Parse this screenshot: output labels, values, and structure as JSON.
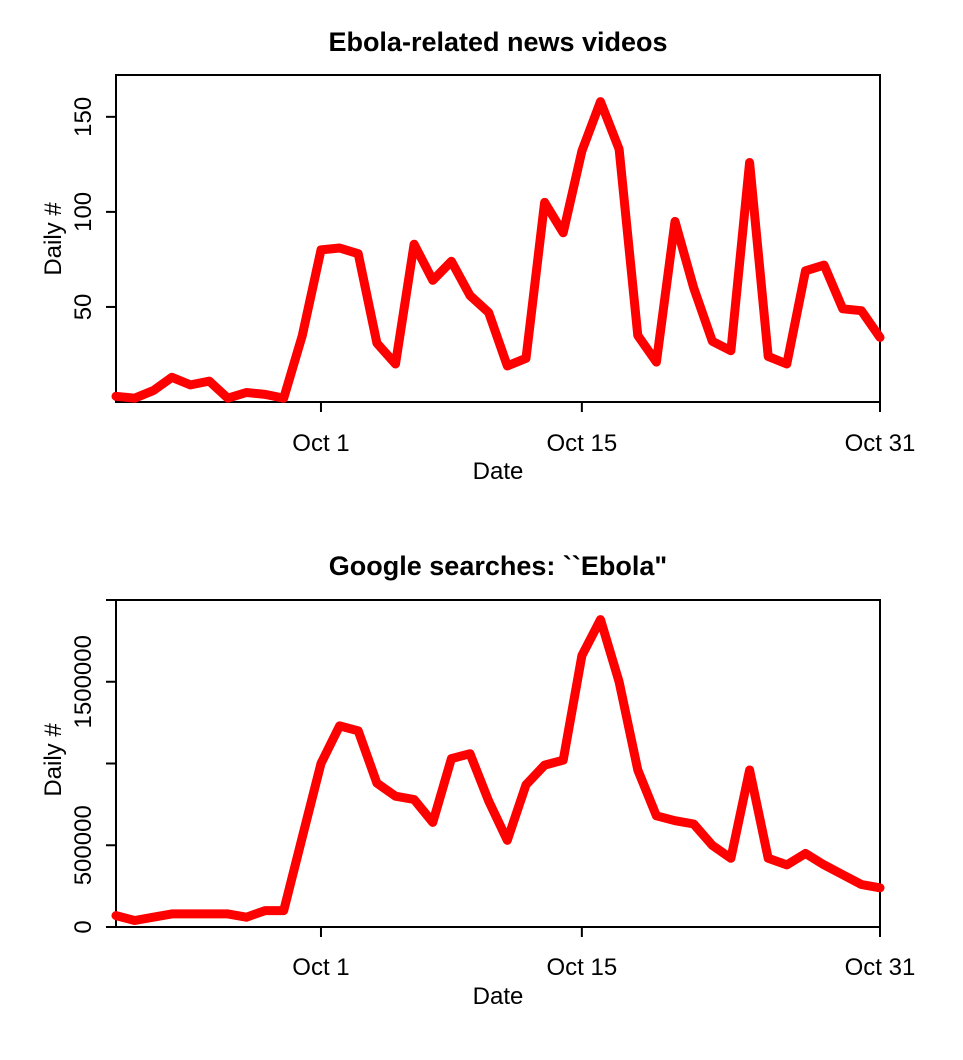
{
  "chart_data": [
    {
      "type": "line",
      "title": "Ebola-related news videos",
      "xlabel": "Date",
      "ylabel": "Daily #",
      "x_ticks": [
        "Oct 1",
        "Oct 15",
        "Oct 31"
      ],
      "y_ticks": [
        "50",
        "100",
        "150"
      ],
      "ylim": [
        0,
        172
      ],
      "grid": false,
      "series": [
        {
          "color": "#ff0000",
          "points": [
            [
              "Sep 20",
              3
            ],
            [
              "Sep 21",
              2
            ],
            [
              "Sep 22",
              6
            ],
            [
              "Sep 23",
              13
            ],
            [
              "Sep 24",
              9
            ],
            [
              "Sep 25",
              11
            ],
            [
              "Sep 26",
              2
            ],
            [
              "Sep 27",
              5
            ],
            [
              "Sep 28",
              4
            ],
            [
              "Sep 29",
              2
            ],
            [
              "Sep 30",
              35
            ],
            [
              "Oct 1",
              80
            ],
            [
              "Oct 2",
              81
            ],
            [
              "Oct 3",
              78
            ],
            [
              "Oct 4",
              31
            ],
            [
              "Oct 5",
              20
            ],
            [
              "Oct 6",
              83
            ],
            [
              "Oct 7",
              64
            ],
            [
              "Oct 8",
              74
            ],
            [
              "Oct 9",
              56
            ],
            [
              "Oct 10",
              47
            ],
            [
              "Oct 11",
              19
            ],
            [
              "Oct 12",
              23
            ],
            [
              "Oct 13",
              105
            ],
            [
              "Oct 14",
              89
            ],
            [
              "Oct 15",
              132
            ],
            [
              "Oct 16",
              158
            ],
            [
              "Oct 17",
              133
            ],
            [
              "Oct 18",
              35
            ],
            [
              "Oct 19",
              21
            ],
            [
              "Oct 20",
              95
            ],
            [
              "Oct 21",
              60
            ],
            [
              "Oct 22",
              32
            ],
            [
              "Oct 23",
              27
            ],
            [
              "Oct 24",
              126
            ],
            [
              "Oct 25",
              24
            ],
            [
              "Oct 26",
              20
            ],
            [
              "Oct 27",
              69
            ],
            [
              "Oct 28",
              72
            ],
            [
              "Oct 29",
              49
            ],
            [
              "Oct 30",
              48
            ],
            [
              "Oct 31",
              34
            ]
          ]
        }
      ]
    },
    {
      "type": "line",
      "title": "Google searches: ``Ebola\"",
      "xlabel": "Date",
      "ylabel": "Daily #",
      "x_ticks": [
        "Oct 1",
        "Oct 15",
        "Oct 31"
      ],
      "y_ticks": [
        "0",
        "500000",
        "1500000"
      ],
      "y_tick_values": [
        0,
        500000,
        1000000,
        1500000,
        2000000
      ],
      "ylim": [
        0,
        2000000
      ],
      "grid": false,
      "series": [
        {
          "color": "#ff0000",
          "points": [
            [
              "Sep 20",
              70000
            ],
            [
              "Sep 21",
              40000
            ],
            [
              "Sep 22",
              60000
            ],
            [
              "Sep 23",
              80000
            ],
            [
              "Sep 24",
              80000
            ],
            [
              "Sep 25",
              80000
            ],
            [
              "Sep 26",
              80000
            ],
            [
              "Sep 27",
              60000
            ],
            [
              "Sep 28",
              100000
            ],
            [
              "Sep 29",
              100000
            ],
            [
              "Sep 30",
              550000
            ],
            [
              "Oct 1",
              1000000
            ],
            [
              "Oct 2",
              1230000
            ],
            [
              "Oct 3",
              1200000
            ],
            [
              "Oct 4",
              880000
            ],
            [
              "Oct 5",
              800000
            ],
            [
              "Oct 6",
              780000
            ],
            [
              "Oct 7",
              640000
            ],
            [
              "Oct 8",
              1030000
            ],
            [
              "Oct 9",
              1060000
            ],
            [
              "Oct 10",
              770000
            ],
            [
              "Oct 11",
              530000
            ],
            [
              "Oct 12",
              870000
            ],
            [
              "Oct 13",
              990000
            ],
            [
              "Oct 14",
              1020000
            ],
            [
              "Oct 15",
              1660000
            ],
            [
              "Oct 16",
              1880000
            ],
            [
              "Oct 17",
              1500000
            ],
            [
              "Oct 18",
              960000
            ],
            [
              "Oct 19",
              680000
            ],
            [
              "Oct 20",
              650000
            ],
            [
              "Oct 21",
              630000
            ],
            [
              "Oct 22",
              500000
            ],
            [
              "Oct 23",
              420000
            ],
            [
              "Oct 24",
              960000
            ],
            [
              "Oct 25",
              420000
            ],
            [
              "Oct 26",
              380000
            ],
            [
              "Oct 27",
              450000
            ],
            [
              "Oct 28",
              380000
            ],
            [
              "Oct 29",
              320000
            ],
            [
              "Oct 30",
              260000
            ],
            [
              "Oct 31",
              240000
            ]
          ]
        }
      ]
    }
  ]
}
